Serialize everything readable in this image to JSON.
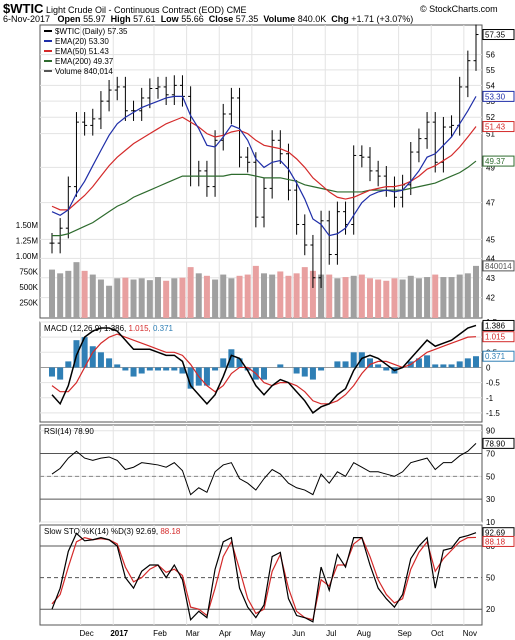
{
  "header": {
    "symbol": "$WTIC",
    "name": "Light Crude Oil - Continuous Contract (EOD)",
    "exchange": "CME",
    "watermark": "© StockCharts.com",
    "date": "6-Nov-2017",
    "open_label": "Open",
    "open": "55.97",
    "high_label": "High",
    "high": "57.61",
    "low_label": "Low",
    "low": "55.66",
    "close_label": "Close",
    "close": "57.35",
    "volume_label": "Volume",
    "volume": "840.0K",
    "chg_label": "Chg",
    "chg": "+1.71 (+3.07%)"
  },
  "legends": {
    "price": "$WTIC (Daily) 57.35",
    "ema20": "EMA(20) 53.30",
    "ema50": "EMA(50) 51.43",
    "ema200": "EMA(200) 49.37",
    "volume": "Volume 840,014",
    "macd_label": "MACD",
    "macd_params": "(12,26,9)",
    "macd_val": "1.386",
    "macd_signal": "1.015",
    "macd_hist": "0.371",
    "rsi": "RSI(14) 78.90",
    "sto_label": "Slow STO %K(14) %D(3)",
    "sto_k": "92.69",
    "sto_d": "88.18"
  },
  "colors": {
    "price_bar": "#000000",
    "ema20": "#1f2ea8",
    "ema50": "#d42a2a",
    "ema200": "#2e6b2e",
    "vol_up": "#a0a0a0",
    "vol_down": "#e8a0a0",
    "macd_hist": "#2f7fb5",
    "signal": "#d42a2a",
    "sto_d": "#d42a2a",
    "grid": "#e3e3e3",
    "axis_blue": "#1f2ea8",
    "axis_red": "#d42a2a",
    "axis_green": "#2e6b2e"
  },
  "x_labels": [
    "Dec",
    "2017",
    "Feb",
    "Mar",
    "Apr",
    "May",
    "Jun",
    "Jul",
    "Aug",
    "Sep",
    "Oct",
    "Nov"
  ],
  "chart_data": [
    {
      "type": "ohlc",
      "ylim": [
        41,
        58
      ],
      "y_ticks": [
        42,
        43,
        44,
        45,
        47,
        49,
        51,
        52,
        53,
        54,
        55,
        56
      ],
      "y_scale": "log",
      "close_value_label": "57.35",
      "ema_labels": [
        "53.30",
        "51.43",
        "49.37"
      ],
      "volume_label_value": "840014",
      "volume_ticks": [
        "250K",
        "500K",
        "750K",
        "1.00M",
        "1.25M",
        "1.50M"
      ],
      "volume_ylim": [
        0,
        1700000
      ],
      "x": [
        "2016-11-07",
        "2016-11-14",
        "2016-11-21",
        "2016-11-28",
        "2016-12-05",
        "2016-12-12",
        "2016-12-19",
        "2016-12-26",
        "2017-01-02",
        "2017-01-09",
        "2017-01-16",
        "2017-01-23",
        "2017-01-30",
        "2017-02-06",
        "2017-02-13",
        "2017-02-20",
        "2017-02-27",
        "2017-03-06",
        "2017-03-13",
        "2017-03-20",
        "2017-03-27",
        "2017-04-03",
        "2017-04-10",
        "2017-04-17",
        "2017-04-24",
        "2017-05-01",
        "2017-05-08",
        "2017-05-15",
        "2017-05-22",
        "2017-05-29",
        "2017-06-05",
        "2017-06-12",
        "2017-06-19",
        "2017-06-26",
        "2017-07-03",
        "2017-07-10",
        "2017-07-17",
        "2017-07-24",
        "2017-07-31",
        "2017-08-07",
        "2017-08-14",
        "2017-08-21",
        "2017-08-28",
        "2017-09-04",
        "2017-09-11",
        "2017-09-18",
        "2017-09-25",
        "2017-10-02",
        "2017-10-09",
        "2017-10-16",
        "2017-10-23",
        "2017-10-30",
        "2017-11-06"
      ],
      "close": [
        44.8,
        45.6,
        47.9,
        51.7,
        51.5,
        51.9,
        53.0,
        53.7,
        53.9,
        52.4,
        52.4,
        53.2,
        53.8,
        53.9,
        53.4,
        54.0,
        53.3,
        48.5,
        48.8,
        47.9,
        50.6,
        52.2,
        53.2,
        49.6,
        49.3,
        46.2,
        47.8,
        50.6,
        49.8,
        47.7,
        45.8,
        44.7,
        43.0,
        46.0,
        44.2,
        46.5,
        45.8,
        49.7,
        49.6,
        48.8,
        48.5,
        47.9,
        47.3,
        48.0,
        49.9,
        50.7,
        51.7,
        49.3,
        51.4,
        51.5,
        53.9,
        55.6,
        57.35
      ],
      "ema20": [
        46.5,
        46.3,
        46.6,
        47.5,
        48.2,
        49.1,
        50.0,
        50.9,
        51.6,
        52.0,
        52.3,
        52.6,
        52.8,
        53.0,
        53.2,
        53.3,
        53.3,
        52.1,
        51.3,
        50.3,
        50.2,
        50.8,
        51.5,
        51.3,
        50.6,
        49.5,
        49.0,
        49.3,
        49.4,
        48.9,
        48.1,
        47.2,
        46.1,
        45.8,
        45.2,
        45.3,
        45.6,
        46.3,
        47.0,
        47.4,
        47.6,
        47.7,
        47.6,
        47.7,
        48.2,
        48.8,
        49.6,
        49.8,
        50.3,
        50.8,
        51.6,
        52.4,
        53.3
      ],
      "ema50": [
        46.8,
        46.6,
        46.6,
        47.0,
        47.4,
        47.9,
        48.5,
        49.1,
        49.6,
        50.0,
        50.4,
        50.7,
        51.0,
        51.3,
        51.6,
        51.8,
        52.0,
        51.7,
        51.4,
        51.0,
        50.8,
        50.9,
        51.1,
        51.2,
        51.0,
        50.6,
        50.3,
        50.2,
        50.1,
        49.9,
        49.5,
        49.0,
        48.4,
        48.0,
        47.6,
        47.3,
        47.2,
        47.3,
        47.5,
        47.7,
        47.8,
        47.9,
        47.9,
        48.0,
        48.2,
        48.5,
        48.9,
        49.1,
        49.4,
        49.7,
        50.2,
        50.8,
        51.43
      ],
      "ema200": [
        45.2,
        45.2,
        45.3,
        45.5,
        45.7,
        45.9,
        46.2,
        46.5,
        46.8,
        47.0,
        47.3,
        47.5,
        47.7,
        47.9,
        48.1,
        48.3,
        48.5,
        48.5,
        48.5,
        48.5,
        48.5,
        48.5,
        48.6,
        48.6,
        48.6,
        48.5,
        48.4,
        48.4,
        48.4,
        48.3,
        48.2,
        48.0,
        47.9,
        47.8,
        47.7,
        47.6,
        47.6,
        47.6,
        47.6,
        47.7,
        47.7,
        47.7,
        47.7,
        47.7,
        47.8,
        47.9,
        48.0,
        48.1,
        48.3,
        48.5,
        48.7,
        49.0,
        49.37
      ],
      "volume": [
        780000,
        720000,
        760000,
        900000,
        760000,
        700000,
        620000,
        520000,
        640000,
        650000,
        620000,
        640000,
        610000,
        660000,
        600000,
        640000,
        650000,
        820000,
        720000,
        680000,
        620000,
        700000,
        640000,
        680000,
        700000,
        840000,
        720000,
        700000,
        750000,
        680000,
        720000,
        820000,
        760000,
        700000,
        700000,
        640000,
        660000,
        680000,
        700000,
        640000,
        620000,
        600000,
        640000,
        620000,
        680000,
        640000,
        660000,
        700000,
        660000,
        660000,
        700000,
        720000,
        840014
      ]
    },
    {
      "type": "line",
      "name": "MACD",
      "ylim": [
        -1.8,
        1.5
      ],
      "y_ticks": [
        -1.5,
        -1.0,
        -0.5,
        0,
        0.5,
        1.0,
        1.5
      ],
      "macd": [
        -0.9,
        -1.2,
        -0.6,
        0.4,
        1.0,
        1.2,
        1.3,
        1.3,
        1.2,
        0.9,
        0.6,
        0.6,
        0.6,
        0.5,
        0.4,
        0.4,
        0.2,
        -0.6,
        -0.9,
        -1.2,
        -0.9,
        -0.3,
        0.4,
        0.3,
        -0.1,
        -0.6,
        -0.9,
        -0.6,
        -0.4,
        -0.5,
        -0.8,
        -1.1,
        -1.5,
        -1.3,
        -1.2,
        -0.9,
        -0.7,
        -0.1,
        0.3,
        0.4,
        0.3,
        0.1,
        -0.1,
        0.0,
        0.3,
        0.6,
        0.9,
        0.7,
        0.8,
        0.9,
        1.1,
        1.3,
        1.386
      ],
      "signal": [
        -0.6,
        -0.8,
        -0.8,
        -0.5,
        0.0,
        0.5,
        0.8,
        1.0,
        1.1,
        1.0,
        0.9,
        0.8,
        0.7,
        0.6,
        0.5,
        0.5,
        0.4,
        0.1,
        -0.3,
        -0.6,
        -0.8,
        -0.6,
        -0.2,
        0.0,
        0.0,
        -0.2,
        -0.5,
        -0.6,
        -0.5,
        -0.5,
        -0.6,
        -0.8,
        -1.1,
        -1.2,
        -1.2,
        -1.1,
        -0.9,
        -0.6,
        -0.2,
        0.1,
        0.2,
        0.2,
        0.1,
        0.0,
        0.1,
        0.3,
        0.5,
        0.6,
        0.7,
        0.8,
        0.9,
        1.0,
        1.015
      ],
      "hist_label": "0.371"
    },
    {
      "type": "line",
      "name": "RSI(14)",
      "ylim": [
        10,
        95
      ],
      "y_ticks": [
        10,
        30,
        50,
        70,
        90
      ],
      "reference_lines": [
        30,
        70
      ],
      "values": [
        52,
        57,
        66,
        72,
        66,
        64,
        66,
        67,
        64,
        56,
        58,
        62,
        61,
        60,
        58,
        62,
        55,
        34,
        40,
        36,
        54,
        60,
        62,
        48,
        44,
        38,
        48,
        56,
        52,
        44,
        40,
        38,
        34,
        52,
        44,
        54,
        50,
        62,
        58,
        54,
        54,
        52,
        50,
        54,
        62,
        64,
        66,
        56,
        62,
        62,
        68,
        72,
        78.9
      ]
    },
    {
      "type": "line",
      "name": "Slow STO",
      "ylim": [
        5,
        100
      ],
      "y_ticks": [
        20,
        50,
        80
      ],
      "reference_lines": [
        20,
        80
      ],
      "k": [
        20,
        40,
        75,
        92,
        85,
        86,
        88,
        86,
        80,
        50,
        40,
        56,
        62,
        62,
        50,
        62,
        48,
        10,
        18,
        12,
        58,
        84,
        88,
        40,
        22,
        12,
        24,
        70,
        74,
        30,
        14,
        12,
        8,
        60,
        38,
        72,
        60,
        88,
        88,
        62,
        40,
        30,
        22,
        34,
        68,
        80,
        88,
        40,
        76,
        78,
        88,
        90,
        92.69
      ],
      "d": [
        25,
        34,
        60,
        84,
        88,
        86,
        87,
        86,
        82,
        60,
        46,
        50,
        58,
        62,
        55,
        58,
        52,
        22,
        20,
        14,
        40,
        70,
        84,
        58,
        30,
        16,
        20,
        56,
        72,
        40,
        18,
        12,
        10,
        48,
        42,
        62,
        62,
        82,
        88,
        70,
        48,
        34,
        26,
        30,
        58,
        74,
        84,
        56,
        68,
        76,
        84,
        88,
        88.18
      ]
    }
  ]
}
